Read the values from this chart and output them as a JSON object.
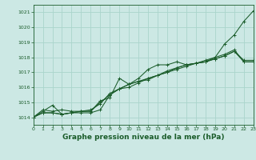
{
  "bg_color": "#cce8e4",
  "grid_color": "#aad4cc",
  "line_color": "#1a5c2a",
  "title": "Graphe pression niveau de la mer (hPa)",
  "xlim": [
    0,
    23
  ],
  "ylim": [
    1013.5,
    1021.5
  ],
  "yticks": [
    1014,
    1015,
    1016,
    1017,
    1018,
    1019,
    1020,
    1021
  ],
  "xticks": [
    0,
    1,
    2,
    3,
    4,
    5,
    6,
    7,
    8,
    9,
    10,
    11,
    12,
    13,
    14,
    15,
    16,
    17,
    18,
    19,
    20,
    21,
    22,
    23
  ],
  "series": [
    [
      1014.0,
      1014.5,
      1014.4,
      1014.5,
      1014.4,
      1014.4,
      1014.4,
      1015.1,
      1015.3,
      1016.6,
      1016.2,
      1016.6,
      1017.2,
      1017.5,
      1017.5,
      1017.7,
      1017.5,
      1017.6,
      1017.7,
      1018.0,
      1018.9,
      1019.5,
      1020.4,
      1021.1
    ],
    [
      1014.0,
      1014.4,
      1014.8,
      1014.2,
      1014.3,
      1014.3,
      1014.3,
      1014.5,
      1015.5,
      1015.9,
      1016.0,
      1016.3,
      1016.6,
      1016.8,
      1017.0,
      1017.2,
      1017.4,
      1017.6,
      1017.8,
      1018.0,
      1018.2,
      1018.5,
      1017.7,
      1017.7
    ],
    [
      1014.0,
      1014.3,
      1014.3,
      1014.2,
      1014.3,
      1014.4,
      1014.5,
      1014.9,
      1015.6,
      1015.9,
      1016.2,
      1016.4,
      1016.6,
      1016.8,
      1017.1,
      1017.3,
      1017.5,
      1017.6,
      1017.7,
      1017.9,
      1018.1,
      1018.4,
      1017.7,
      1017.7
    ],
    [
      1014.0,
      1014.3,
      1014.3,
      1014.2,
      1014.3,
      1014.4,
      1014.4,
      1015.0,
      1015.5,
      1015.9,
      1016.2,
      1016.4,
      1016.5,
      1016.8,
      1017.0,
      1017.3,
      1017.5,
      1017.6,
      1017.7,
      1017.9,
      1018.1,
      1018.4,
      1017.8,
      1017.8
    ]
  ],
  "title_fontsize": 6.5,
  "tick_fontsize": 4.5,
  "linewidth": 0.75,
  "markersize": 2.5
}
